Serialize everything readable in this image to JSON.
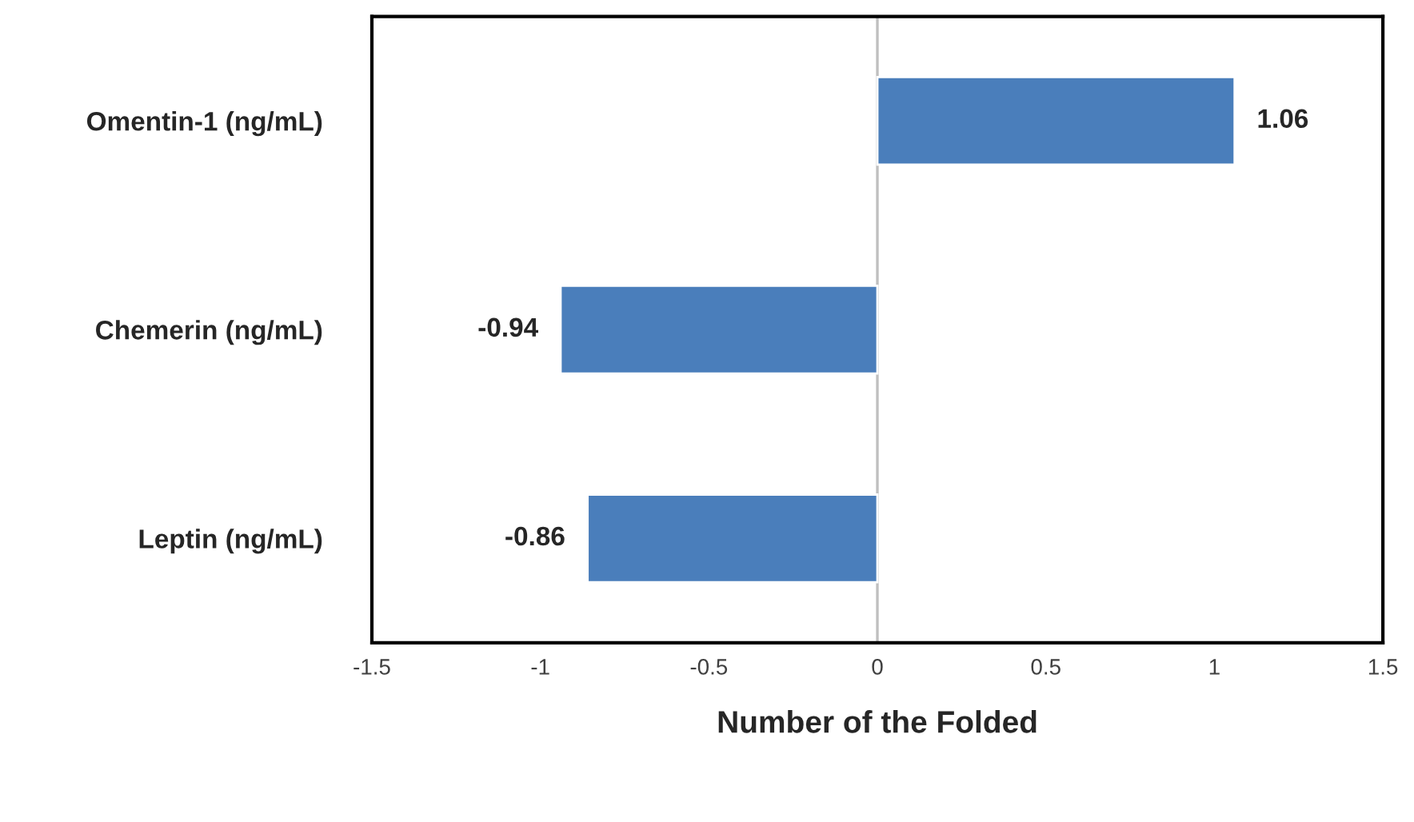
{
  "chart_data": {
    "type": "bar",
    "orientation": "horizontal",
    "xlabel": "Number of the Folded",
    "categories": [
      "Omentin-1 (ng/mL)",
      "Chemerin (ng/mL)",
      "Leptin (ng/mL)"
    ],
    "values": [
      1.06,
      -0.94,
      -0.86
    ],
    "color": "#4a7ebb",
    "xlim": [
      -1.5,
      1.5
    ],
    "xticks": [
      -1.5,
      -1,
      -0.5,
      0,
      0.5,
      1,
      1.5
    ],
    "ref_lines": [
      {
        "axis": "x",
        "value": 0,
        "color": "#bfbfbf"
      }
    ],
    "data_labels": true,
    "grid": false,
    "legend": false
  }
}
